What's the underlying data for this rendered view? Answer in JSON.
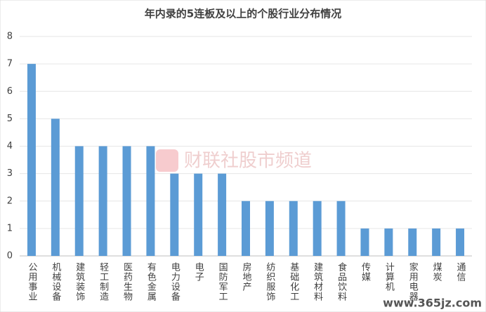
{
  "chart_data": {
    "type": "bar",
    "title": "年内录的5连板及以上的个股行业分布情况",
    "categories": [
      "公用事业",
      "机械设备",
      "建筑装饰",
      "轻工制造",
      "医药生物",
      "有色金属",
      "电力设备",
      "电子",
      "国防军工",
      "房地产",
      "纺织服饰",
      "基础化工",
      "建筑材料",
      "食品饮料",
      "传媒",
      "计算机",
      "家用电器",
      "煤炭",
      "通信"
    ],
    "values": [
      7,
      5,
      4,
      4,
      4,
      4,
      3,
      3,
      3,
      2,
      2,
      2,
      2,
      2,
      1,
      1,
      1,
      1,
      1
    ],
    "color": "#5b9bd5",
    "ylim": [
      0,
      8
    ],
    "yticks": [
      0,
      1,
      2,
      3,
      4,
      5,
      6,
      7,
      8
    ],
    "grid": true,
    "watermark": "财联社股市频道",
    "site": "www.365jz.com"
  }
}
